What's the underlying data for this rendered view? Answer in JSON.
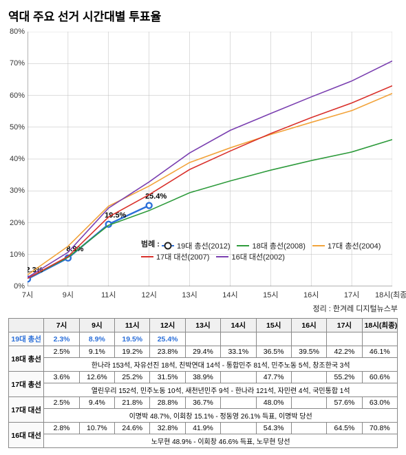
{
  "title": "역대 주요 선거 시간대별 투표율",
  "source": "정리 : 한겨레 디지털뉴스부",
  "chart": {
    "type": "line",
    "ylim": [
      0,
      80
    ],
    "ytick_step": 10,
    "ylabel_suffix": "%",
    "x_categories": [
      "7시",
      "9시",
      "11시",
      "12시",
      "13시",
      "14시",
      "15시",
      "16시",
      "17시",
      "18시(최종)"
    ],
    "gridline_count": 10,
    "series": [
      {
        "key": "s19",
        "label": "19대 총선(2012)",
        "color": "#2b6fd9",
        "thick": true,
        "markers": true,
        "values": [
          2.3,
          8.9,
          19.5,
          25.4
        ],
        "point_labels": [
          "2.3%",
          "8.9%",
          "19.5%",
          "25.4%"
        ]
      },
      {
        "key": "s18",
        "label": "18대 총선(2008)",
        "color": "#2e9b3c",
        "values": [
          2.5,
          9.1,
          19.2,
          23.8,
          29.4,
          33.1,
          36.5,
          39.5,
          42.2,
          46.1
        ]
      },
      {
        "key": "s17g",
        "label": "17대 총선(2004)",
        "color": "#f2a33a",
        "values": [
          3.6,
          12.6,
          25.2,
          31.5,
          38.9,
          43.5,
          47.7,
          51.5,
          55.2,
          60.6
        ]
      },
      {
        "key": "s17p",
        "label": "17대 대선(2007)",
        "color": "#d9302b",
        "values": [
          2.5,
          9.4,
          21.8,
          28.8,
          36.7,
          42.5,
          48.0,
          53.0,
          57.6,
          63.0
        ]
      },
      {
        "key": "s16p",
        "label": "16대 대선(2002)",
        "color": "#7a3fb0",
        "values": [
          2.8,
          10.7,
          24.6,
          32.8,
          41.9,
          49.0,
          54.3,
          59.5,
          64.5,
          70.8
        ]
      }
    ],
    "legend_title": "범례 :"
  },
  "table": {
    "headers": [
      "",
      "7시",
      "9시",
      "11시",
      "12시",
      "13시",
      "14시",
      "15시",
      "16시",
      "17시",
      "18시(최종)"
    ],
    "rows": [
      {
        "key": "r19",
        "highlight": true,
        "head": "19대 총선",
        "cells": [
          "2.3%",
          "8.9%",
          "19.5%",
          "25.4%",
          "",
          "",
          "",
          "",
          "",
          ""
        ]
      },
      {
        "key": "r18",
        "head": "18대 총선",
        "cells": [
          "2.5%",
          "9.1%",
          "19.2%",
          "23.8%",
          "29.4%",
          "33.1%",
          "36.5%",
          "39.5%",
          "42.2%",
          "46.1%"
        ],
        "note": "한나라 153석, 자유선진 18석, 친박연대 14석 - 통합민주 81석, 민주노동 5석, 창조한국 3석"
      },
      {
        "key": "r17g",
        "head": "17대 총선",
        "cells": [
          "3.6%",
          "12.6%",
          "25.2%",
          "31.5%",
          "38.9%",
          "",
          "47.7%",
          "",
          "55.2%",
          "60.6%"
        ],
        "note": "열린우리 152석, 민주노동 10석, 새천년민주 9석 - 한나라 121석, 자민련 4석, 국민통합 1석"
      },
      {
        "key": "r17p",
        "head": "17대 대선",
        "cells": [
          "2.5%",
          "9.4%",
          "21.8%",
          "28.8%",
          "36.7%",
          "",
          "48.0%",
          "",
          "57.6%",
          "63.0%"
        ],
        "note": "이명박 48.7%, 이회창 15.1% - 정동영 26.1% 득표, 이명박 당선"
      },
      {
        "key": "r16p",
        "head": "16대 대선",
        "cells": [
          "2.8%",
          "10.7%",
          "24.6%",
          "32.8%",
          "41.9%",
          "",
          "54.3%",
          "",
          "64.5%",
          "70.8%"
        ],
        "note": "노무현 48.9% - 이회창 46.6% 득표, 노무현 당선"
      }
    ]
  }
}
